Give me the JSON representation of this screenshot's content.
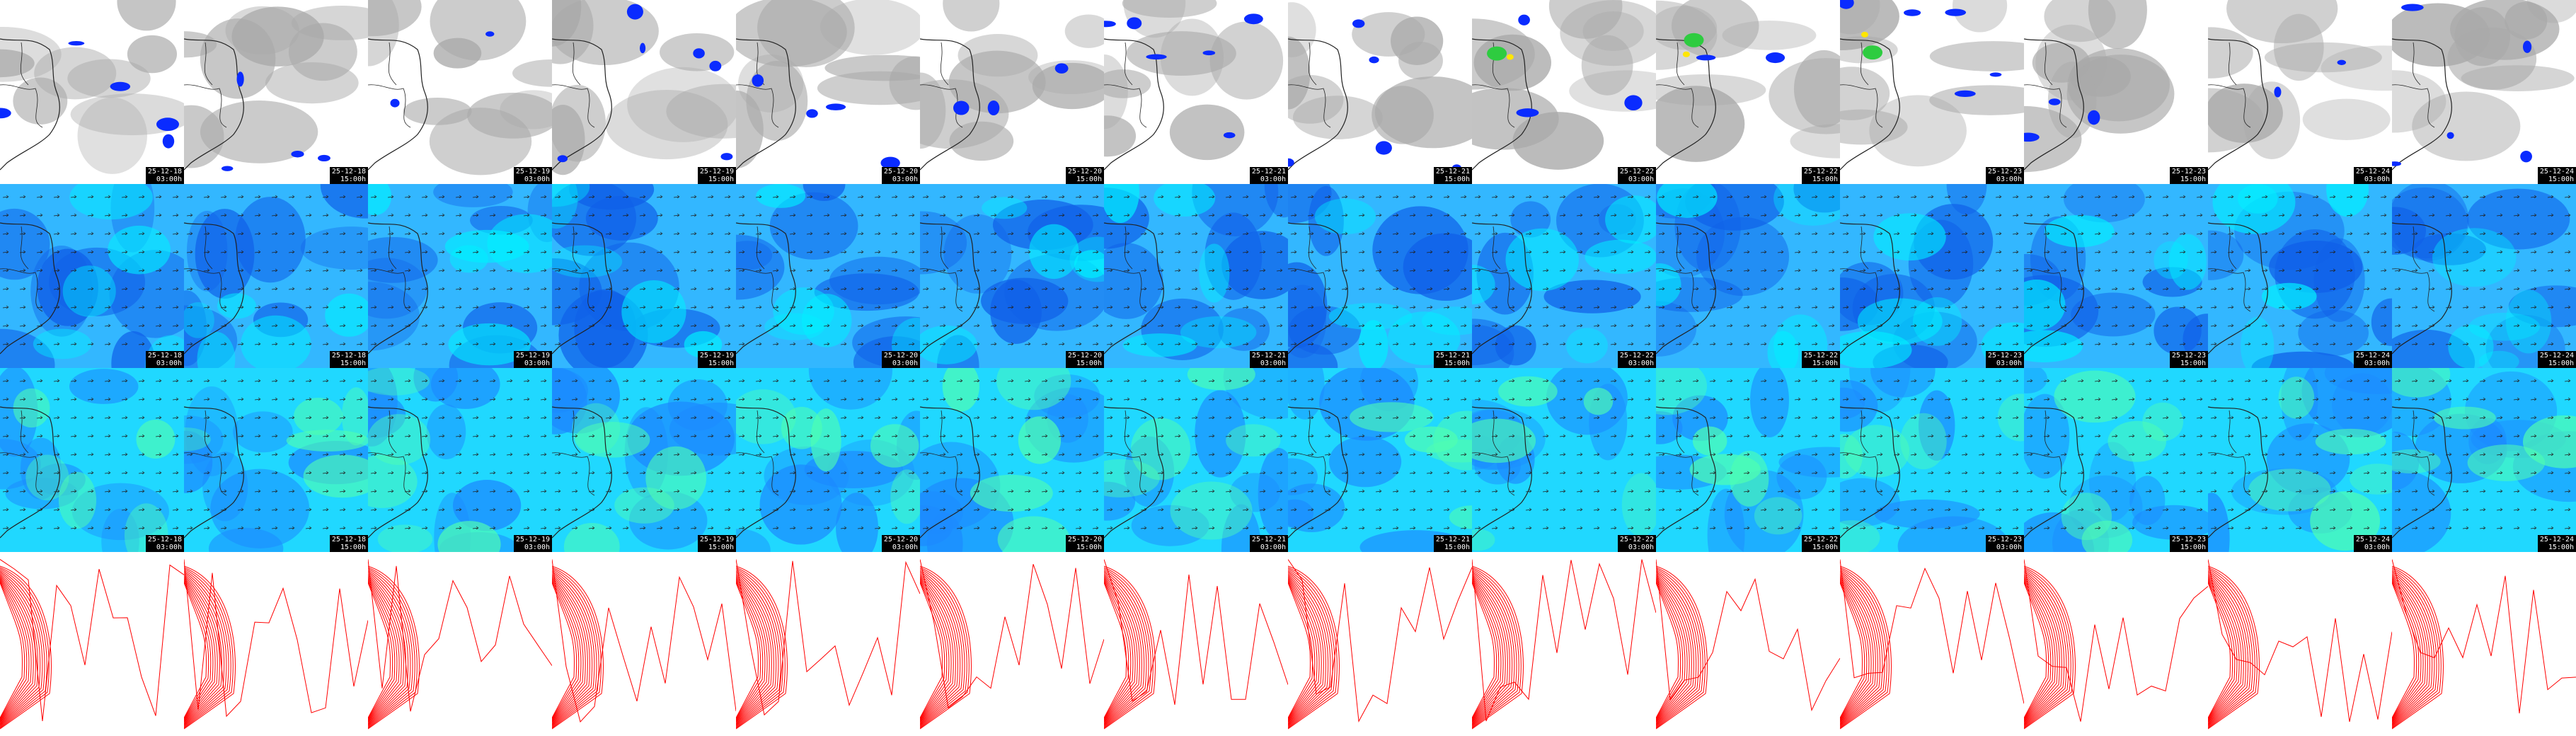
{
  "frames": [
    {
      "date": "25-12-18",
      "hour": "03:00h"
    },
    {
      "date": "25-12-18",
      "hour": "15:00h"
    },
    {
      "date": "25-12-19",
      "hour": "03:00h"
    },
    {
      "date": "25-12-19",
      "hour": "15:00h"
    },
    {
      "date": "25-12-20",
      "hour": "03:00h"
    },
    {
      "date": "25-12-20",
      "hour": "15:00h"
    },
    {
      "date": "25-12-21",
      "hour": "03:00h"
    },
    {
      "date": "25-12-21",
      "hour": "15:00h"
    },
    {
      "date": "25-12-22",
      "hour": "03:00h"
    },
    {
      "date": "25-12-22",
      "hour": "15:00h"
    },
    {
      "date": "25-12-23",
      "hour": "03:00h"
    },
    {
      "date": "25-12-23",
      "hour": "15:00h"
    },
    {
      "date": "25-12-24",
      "hour": "03:00h"
    },
    {
      "date": "25-12-24",
      "hour": "15:00h"
    }
  ],
  "rows": [
    {
      "kind": "cloud-precipitation",
      "base_color": "#ffffff",
      "cloud_color": "#a9a9a9",
      "precip_color": "#0a2bff",
      "stamp_visible": true
    },
    {
      "kind": "wind-lower-level",
      "base_color": "#33b7ff",
      "patch_color": "#1060e8",
      "light_color": "#00f0ff",
      "stamp_visible": true
    },
    {
      "kind": "wind-upper-level",
      "base_color": "#20d8ff",
      "patch_color": "#1c8aff",
      "light_color": "#50ffb0",
      "stamp_visible": true
    },
    {
      "kind": "pressure-isobars",
      "base_color": "#ffffff",
      "line_color": "#ff0000",
      "stamp_visible": false
    }
  ],
  "colors": {
    "coast": "#222222",
    "arrow": "#222222",
    "stamp_bg": "#000000",
    "stamp_text": "#ffffff"
  }
}
